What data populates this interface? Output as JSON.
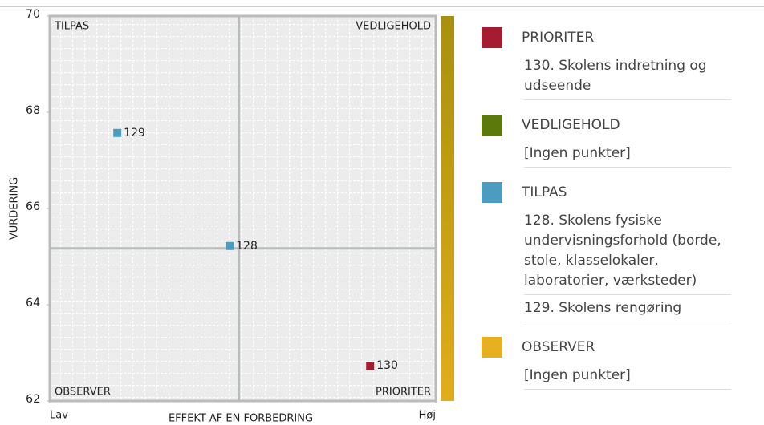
{
  "chart_data": {
    "type": "quadrant-scatter",
    "ylabel": "VURDERING",
    "xlabel": "EFFEKT AF EN FORBEDRING",
    "ylim": [
      62,
      70
    ],
    "yticks": [
      62,
      64,
      66,
      68,
      70
    ],
    "xlim": [
      0,
      100
    ],
    "xticks": [
      {
        "value": 0,
        "label": "Lav"
      },
      {
        "value": 100,
        "label": "Høj"
      }
    ],
    "x_threshold": 49,
    "y_threshold": 65.17,
    "series": [
      {
        "name": "PRIORITER",
        "color": "#a51c30",
        "quadrant": "bottom-right",
        "points": [
          {
            "label": "130",
            "x": 83,
            "y": 62.73
          }
        ],
        "items": [
          "130. Skolens indretning og udseende"
        ]
      },
      {
        "name": "VEDLIGEHOLD",
        "color": "#5b7a0b",
        "quadrant": "top-right",
        "points": [],
        "items": [
          "[Ingen punkter]"
        ]
      },
      {
        "name": "TILPAS",
        "color": "#4b9cc0",
        "quadrant": "top-left",
        "points": [
          {
            "label": "128",
            "x": 46.6,
            "y": 65.22
          },
          {
            "label": "129",
            "x": 17.5,
            "y": 67.57
          }
        ],
        "items": [
          "128. Skolens fysiske undervisningsforhold (borde, stole, klasselokaler, laboratorier, værksteder)",
          "129. Skolens rengøring"
        ]
      },
      {
        "name": "OBSERVER",
        "color": "#e6b020",
        "quadrant": "bottom-left",
        "points": [],
        "items": [
          "[Ingen punkter]"
        ]
      }
    ]
  }
}
